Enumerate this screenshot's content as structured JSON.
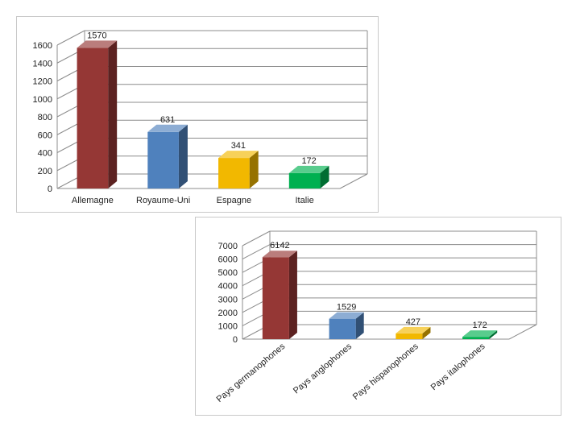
{
  "chart_data": [
    {
      "type": "bar",
      "categories": [
        "Allemagne",
        "Royaume-Uni",
        "Espagne",
        "Italie"
      ],
      "values": [
        1570,
        631,
        341,
        172
      ],
      "data_labels": [
        "1570",
        "631",
        "341",
        "172"
      ],
      "ylim": [
        0,
        1600
      ],
      "yticks": [
        "0",
        "200",
        "400",
        "600",
        "800",
        "1000",
        "1200",
        "1400",
        "1600"
      ],
      "colors": [
        "#953735",
        "#4f81bd",
        "#f2b800",
        "#00b050"
      ],
      "grid": true,
      "style": "3d-column",
      "xlabel_rotation": 0
    },
    {
      "type": "bar",
      "categories": [
        "Pays germanophones",
        "Pays anglophones",
        "Pays hispanophones",
        "Pays italophones"
      ],
      "values": [
        6142,
        1529,
        427,
        172
      ],
      "data_labels": [
        "6142",
        "1529",
        "427",
        "172"
      ],
      "ylim": [
        0,
        7000
      ],
      "yticks": [
        "0",
        "1000",
        "2000",
        "3000",
        "4000",
        "5000",
        "6000",
        "7000"
      ],
      "colors": [
        "#953735",
        "#4f81bd",
        "#f2b800",
        "#00b050"
      ],
      "grid": true,
      "style": "3d-column",
      "xlabel_rotation": -40
    }
  ]
}
